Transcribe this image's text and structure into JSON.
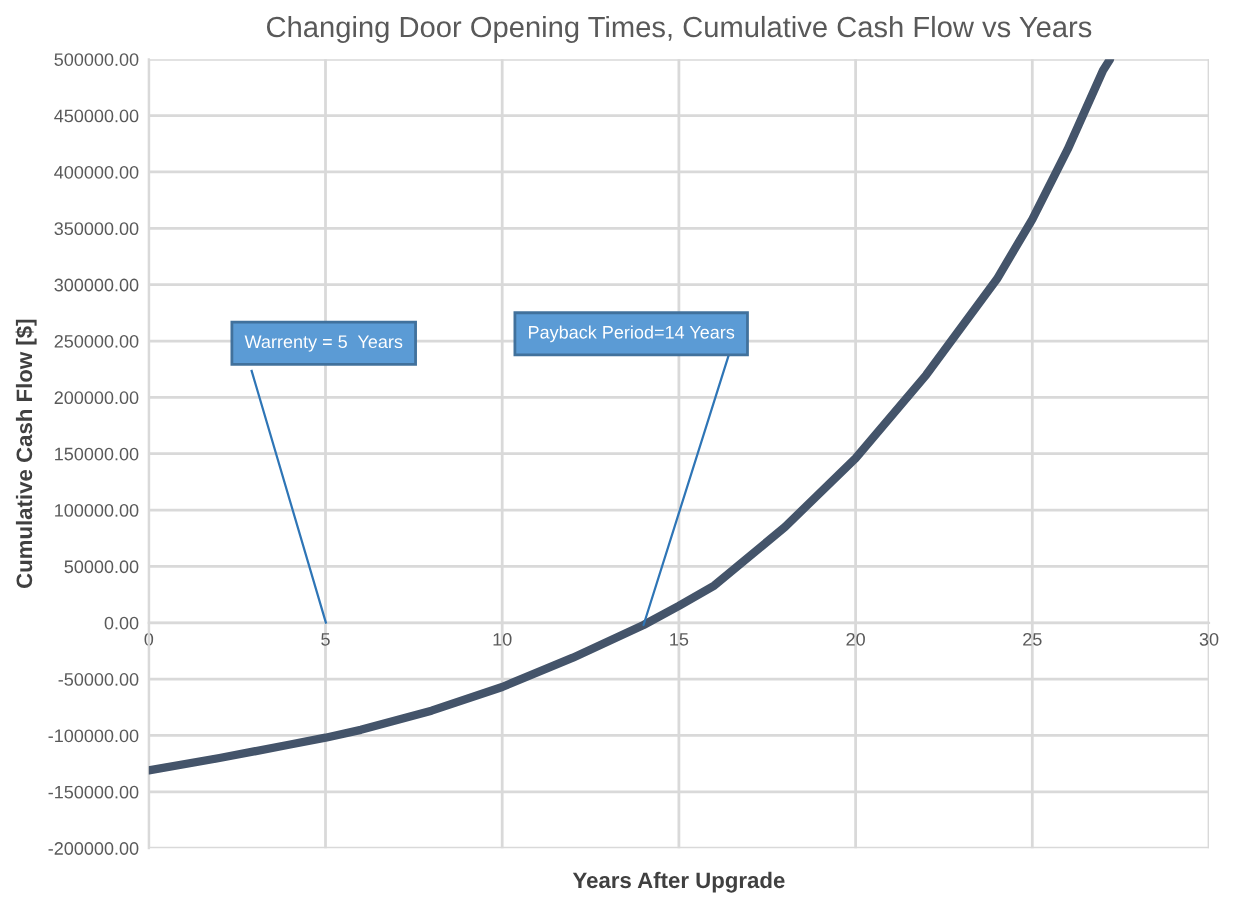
{
  "chart_data": {
    "type": "line",
    "title": "Changing Door Opening Times, Cumulative Cash Flow vs Years",
    "xlabel": "Years After Upgrade",
    "ylabel": "Cumulative Cash Flow [$]",
    "series": [
      {
        "color": "#44546a",
        "x": [
          0,
          2,
          4,
          5,
          6,
          8,
          10,
          12,
          14,
          15,
          16,
          18,
          20,
          22,
          24,
          25,
          26,
          27,
          27.2
        ],
        "values": [
          -131000,
          -120000,
          -108000,
          -102000,
          -95000,
          -78000,
          -57000,
          -31000,
          -2000,
          15000,
          33000,
          85000,
          146000,
          220000,
          305000,
          358000,
          420000,
          490000,
          500000
        ]
      }
    ],
    "xlim": [
      0,
      30
    ],
    "xticks": [
      0,
      5,
      10,
      15,
      20,
      25,
      30
    ],
    "ylim": [
      -200000,
      500000
    ],
    "yticks": [
      {
        "value": -200000,
        "label": "-200000.00"
      },
      {
        "value": -150000,
        "label": "-150000.00"
      },
      {
        "value": -100000,
        "label": "-100000.00"
      },
      {
        "value": -50000,
        "label": "-50000.00"
      },
      {
        "value": 0,
        "label": "0.00"
      },
      {
        "value": 50000,
        "label": "50000.00"
      },
      {
        "value": 100000,
        "label": "100000.00"
      },
      {
        "value": 150000,
        "label": "150000.00"
      },
      {
        "value": 200000,
        "label": "200000.00"
      },
      {
        "value": 250000,
        "label": "250000.00"
      },
      {
        "value": 300000,
        "label": "300000.00"
      },
      {
        "value": 350000,
        "label": "350000.00"
      },
      {
        "value": 400000,
        "label": "400000.00"
      },
      {
        "value": 450000,
        "label": "450000.00"
      },
      {
        "value": 500000,
        "label": "500000.00"
      }
    ],
    "grid": true,
    "marker": "none",
    "line_style": "solid",
    "annotations": [
      "Warrenty = 5  Years",
      {
        "text": "Payback Period=14 Years",
        "x": 14,
        "y": -2000
      }
    ]
  }
}
